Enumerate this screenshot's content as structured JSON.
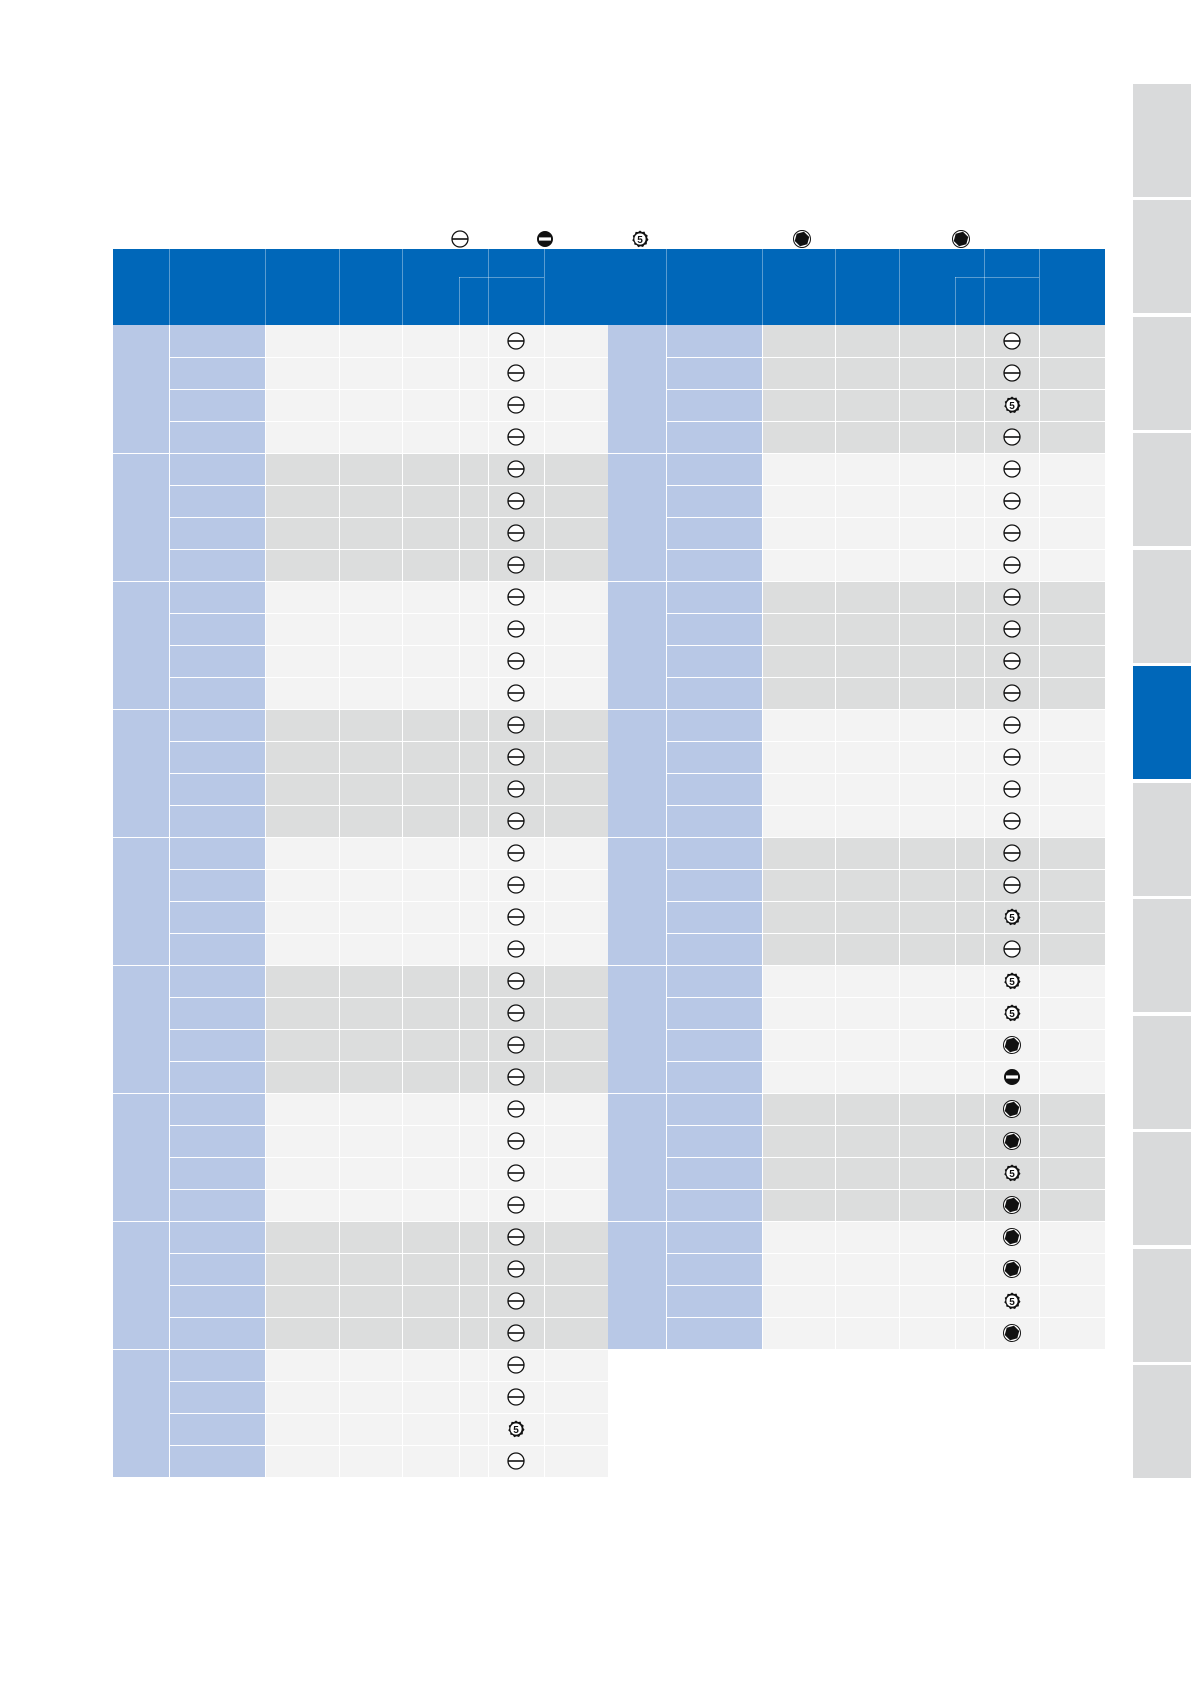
{
  "legend": [
    "slot-icon",
    "slot-filled-icon",
    "number-5-icon",
    "hexagon-icon",
    "hexagon-icon"
  ],
  "side_tabs": {
    "count": 12,
    "active_index": 5
  },
  "colors": {
    "header": "#0067b9",
    "label_cell": "#b8c8e6",
    "row_light": "#f3f3f3",
    "row_dark": "#dcdddd",
    "sidetab": "#d9dadb"
  },
  "left_table": {
    "groups": 9,
    "rows_per_group": 4,
    "icons": [
      "slot",
      "slot",
      "slot",
      "slot",
      "slot",
      "slot",
      "slot",
      "slot",
      "slot",
      "slot",
      "slot",
      "slot",
      "slot",
      "slot",
      "slot",
      "slot",
      "slot",
      "slot",
      "slot",
      "slot",
      "slot",
      "slot",
      "slot",
      "slot",
      "slot",
      "slot",
      "slot",
      "slot",
      "slot",
      "slot",
      "slot",
      "slot",
      "slot",
      "slot",
      "num5",
      "slot"
    ]
  },
  "right_table": {
    "groups": 8,
    "rows_per_group": 4,
    "icons": [
      "slot",
      "slot",
      "num5",
      "slot",
      "slot",
      "slot",
      "slot",
      "slot",
      "slot",
      "slot",
      "slot",
      "slot",
      "slot",
      "slot",
      "slot",
      "slot",
      "slot",
      "slot",
      "num5",
      "slot",
      "num5",
      "num5",
      "hex",
      "filled",
      "hex",
      "hex",
      "num5",
      "hex",
      "hex",
      "hex",
      "num5",
      "hex"
    ]
  }
}
